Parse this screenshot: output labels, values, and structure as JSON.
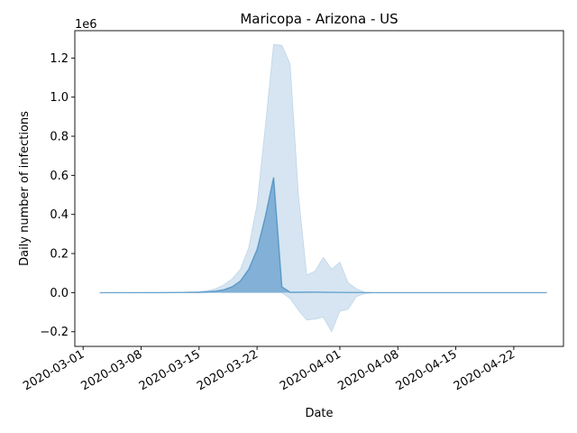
{
  "chart_data": {
    "type": "area",
    "title": "Maricopa - Arizona - US",
    "xlabel": "Date",
    "ylabel": "Daily number of infections",
    "y_offset_label": "1e6",
    "y_scale_multiplier": 1000000,
    "xlim": [
      "2020-02-29",
      "2020-04-28"
    ],
    "ylim": [
      -0.275,
      1.34
    ],
    "grid": false,
    "x_ticks": [
      "2020-03-01",
      "2020-03-08",
      "2020-03-15",
      "2020-03-22",
      "2020-04-01",
      "2020-04-08",
      "2020-04-15",
      "2020-04-22"
    ],
    "y_ticks": [
      -0.2,
      0.0,
      0.2,
      0.4,
      0.6,
      0.8,
      1.0,
      1.2
    ],
    "colors": {
      "band": "#b4cfe6",
      "band_opacity": 0.55,
      "mean_fill": "#4a8cc4",
      "mean_opacity": 0.6,
      "line": "#1f77b4"
    },
    "series": [
      {
        "kind": "band",
        "points": [
          {
            "x": "2020-03-03",
            "lo": 0,
            "hi": 0
          },
          {
            "x": "2020-03-10",
            "lo": 0,
            "hi": 0.001
          },
          {
            "x": "2020-03-13",
            "lo": 0,
            "hi": 0.002
          },
          {
            "x": "2020-03-15",
            "lo": 0,
            "hi": 0.005
          },
          {
            "x": "2020-03-16",
            "lo": 0,
            "hi": 0.01
          },
          {
            "x": "2020-03-17",
            "lo": 0,
            "hi": 0.02
          },
          {
            "x": "2020-03-18",
            "lo": 0,
            "hi": 0.04
          },
          {
            "x": "2020-03-19",
            "lo": 0,
            "hi": 0.07
          },
          {
            "x": "2020-03-20",
            "lo": 0,
            "hi": 0.12
          },
          {
            "x": "2020-03-21",
            "lo": 0,
            "hi": 0.23
          },
          {
            "x": "2020-03-22",
            "lo": 0,
            "hi": 0.45
          },
          {
            "x": "2020-03-23",
            "lo": 0,
            "hi": 0.85
          },
          {
            "x": "2020-03-24",
            "lo": 0,
            "hi": 1.27
          },
          {
            "x": "2020-03-25",
            "lo": 0,
            "hi": 1.265
          },
          {
            "x": "2020-03-26",
            "lo": -0.03,
            "hi": 1.17
          },
          {
            "x": "2020-03-27",
            "lo": -0.09,
            "hi": 0.5
          },
          {
            "x": "2020-03-28",
            "lo": -0.14,
            "hi": 0.09
          },
          {
            "x": "2020-03-29",
            "lo": -0.135,
            "hi": 0.11
          },
          {
            "x": "2020-03-30",
            "lo": -0.125,
            "hi": 0.18
          },
          {
            "x": "2020-03-31",
            "lo": -0.2,
            "hi": 0.12
          },
          {
            "x": "2020-04-01",
            "lo": -0.095,
            "hi": 0.155
          },
          {
            "x": "2020-04-02",
            "lo": -0.085,
            "hi": 0.05
          },
          {
            "x": "2020-04-03",
            "lo": -0.02,
            "hi": 0.02
          },
          {
            "x": "2020-04-04",
            "lo": -0.005,
            "hi": 0.002
          },
          {
            "x": "2020-04-05",
            "lo": 0,
            "hi": 0
          },
          {
            "x": "2020-04-26",
            "lo": 0,
            "hi": 0
          }
        ]
      },
      {
        "kind": "mean",
        "points": [
          {
            "x": "2020-03-03",
            "y": 0
          },
          {
            "x": "2020-03-10",
            "y": 0
          },
          {
            "x": "2020-03-13",
            "y": 0.001
          },
          {
            "x": "2020-03-15",
            "y": 0.002
          },
          {
            "x": "2020-03-16",
            "y": 0.004
          },
          {
            "x": "2020-03-17",
            "y": 0.008
          },
          {
            "x": "2020-03-18",
            "y": 0.015
          },
          {
            "x": "2020-03-19",
            "y": 0.03
          },
          {
            "x": "2020-03-20",
            "y": 0.06
          },
          {
            "x": "2020-03-21",
            "y": 0.12
          },
          {
            "x": "2020-03-22",
            "y": 0.22
          },
          {
            "x": "2020-03-23",
            "y": 0.39
          },
          {
            "x": "2020-03-24",
            "y": 0.59
          },
          {
            "x": "2020-03-25",
            "y": 0.03
          },
          {
            "x": "2020-03-26",
            "y": 0.002
          },
          {
            "x": "2020-03-29",
            "y": 0.003
          },
          {
            "x": "2020-04-01",
            "y": 0.001
          },
          {
            "x": "2020-04-05",
            "y": 0
          },
          {
            "x": "2020-04-26",
            "y": 0
          }
        ]
      }
    ]
  }
}
